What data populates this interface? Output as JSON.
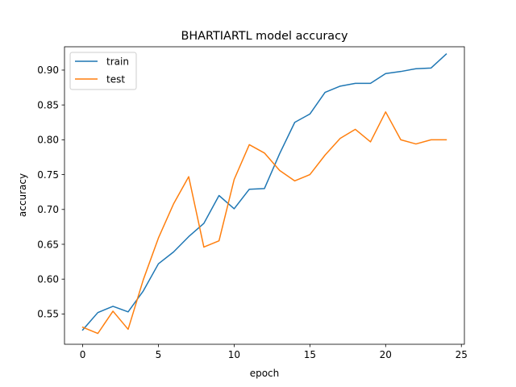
{
  "chart_data": {
    "type": "line",
    "title": "BHARTIARTL model accuracy",
    "xlabel": "epoch",
    "ylabel": "accuracy",
    "xlim": [
      -1.2,
      25.2
    ],
    "ylim": [
      0.5065,
      0.9335
    ],
    "xticks": [
      0,
      5,
      10,
      15,
      20,
      25
    ],
    "yticks": [
      0.55,
      0.6,
      0.65,
      0.7,
      0.75,
      0.8,
      0.85,
      0.9
    ],
    "ytick_labels": [
      "0.55",
      "0.60",
      "0.65",
      "0.70",
      "0.75",
      "0.80",
      "0.85",
      "0.90"
    ],
    "legend_position": "upper-left",
    "x": [
      0,
      1,
      2,
      3,
      4,
      5,
      6,
      7,
      8,
      9,
      10,
      11,
      12,
      13,
      14,
      15,
      16,
      17,
      18,
      19,
      20,
      21,
      22,
      23,
      24
    ],
    "series": [
      {
        "name": "train",
        "color": "#1f77b4",
        "values": [
          0.527,
          0.552,
          0.561,
          0.553,
          0.583,
          0.622,
          0.639,
          0.661,
          0.68,
          0.72,
          0.701,
          0.729,
          0.73,
          0.78,
          0.825,
          0.837,
          0.868,
          0.877,
          0.881,
          0.881,
          0.895,
          0.898,
          0.902,
          0.903,
          0.923
        ]
      },
      {
        "name": "test",
        "color": "#ff7f0e",
        "values": [
          0.531,
          0.522,
          0.554,
          0.528,
          0.599,
          0.659,
          0.708,
          0.747,
          0.646,
          0.655,
          0.743,
          0.793,
          0.781,
          0.756,
          0.741,
          0.75,
          0.778,
          0.802,
          0.815,
          0.797,
          0.84,
          0.8,
          0.794,
          0.8,
          0.8
        ]
      }
    ]
  }
}
